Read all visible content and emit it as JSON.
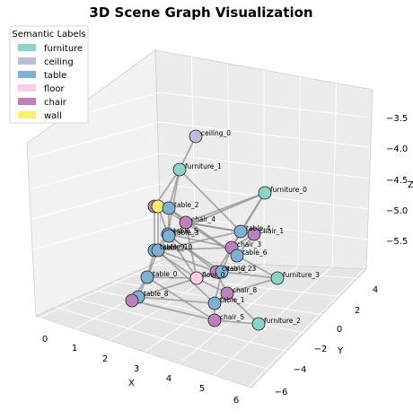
{
  "chart_data": {
    "type": "scatter",
    "title": "3D Scene Graph Visualization",
    "xlabel": "X",
    "ylabel": "Y",
    "zlabel": "Z",
    "x_ticks": [
      "0",
      "1",
      "2",
      "3",
      "4",
      "5",
      "6"
    ],
    "y_ticks": [
      "4",
      "2",
      "0",
      "−2",
      "−4",
      "−6"
    ],
    "z_ticks": [
      "−3.5",
      "−4.0",
      "−4.5",
      "−5.0",
      "−5.5"
    ],
    "grid": true,
    "legend": {
      "title": "Semantic Labels",
      "placement": "top-left",
      "entries": [
        {
          "label": "furniture",
          "color": "#8dd3c7"
        },
        {
          "label": "ceiling",
          "color": "#bebada"
        },
        {
          "label": "table",
          "color": "#80b1d3"
        },
        {
          "label": "floor",
          "color": "#fccde5"
        },
        {
          "label": "chair",
          "color": "#bc80bd"
        },
        {
          "label": "wall",
          "color": "#ffed6f"
        }
      ]
    },
    "colors": {
      "furniture": "#8dd3c7",
      "ceiling": "#bebada",
      "table": "#80b1d3",
      "floor": "#fccde5",
      "chair": "#bc80bd",
      "wall": "#ffed6f"
    },
    "nodes": [
      {
        "id": "ceiling_0",
        "category": "ceiling",
        "label": "ceiling_0"
      },
      {
        "id": "furniture_1",
        "category": "furniture",
        "label": "furniture_1"
      },
      {
        "id": "furniture_0",
        "category": "furniture",
        "label": "furniture_0"
      },
      {
        "id": "chair_0",
        "category": "chair",
        "label": ""
      },
      {
        "id": "wall_0",
        "category": "wall",
        "label": ""
      },
      {
        "id": "table_2",
        "category": "table",
        "label": "table_2"
      },
      {
        "id": "chair_4",
        "category": "chair",
        "label": "chair_4"
      },
      {
        "id": "table_5",
        "category": "table",
        "label": "table_5"
      },
      {
        "id": "table_3",
        "category": "table",
        "label": "table_3"
      },
      {
        "id": "table_4",
        "category": "table",
        "label": "table_4"
      },
      {
        "id": "chair_1",
        "category": "chair",
        "label": "chair_1"
      },
      {
        "id": "chair_3",
        "category": "chair",
        "label": "chair_3"
      },
      {
        "id": "table_6",
        "category": "table",
        "label": "table_6"
      },
      {
        "id": "table_9",
        "category": "table",
        "label": "table_9"
      },
      {
        "id": "table_10",
        "category": "table",
        "label": "table_10"
      },
      {
        "id": "table_0",
        "category": "table",
        "label": "table_0"
      },
      {
        "id": "floor_0",
        "category": "floor",
        "label": "floor_0"
      },
      {
        "id": "chair_2",
        "category": "chair",
        "label": "chair_2"
      },
      {
        "id": "table_23",
        "category": "table",
        "label": "table_23"
      },
      {
        "id": "furniture_3",
        "category": "furniture",
        "label": "furniture_3"
      },
      {
        "id": "chair_8",
        "category": "chair",
        "label": "chair_8"
      },
      {
        "id": "table_8",
        "category": "table",
        "label": "table_8"
      },
      {
        "id": "chair_6",
        "category": "chair",
        "label": ""
      },
      {
        "id": "table_1",
        "category": "table",
        "label": "table_1"
      },
      {
        "id": "chair_5",
        "category": "chair",
        "label": "chair_5"
      },
      {
        "id": "furniture_2",
        "category": "furniture",
        "label": "furniture_2"
      }
    ],
    "edges": [
      [
        "ceiling_0",
        "furniture_1"
      ],
      [
        "furniture_1",
        "table_2"
      ],
      [
        "furniture_1",
        "chair_0"
      ],
      [
        "furniture_1",
        "table_5"
      ],
      [
        "furniture_1",
        "table_4"
      ],
      [
        "furniture_0",
        "chair_4"
      ],
      [
        "furniture_0",
        "table_4"
      ],
      [
        "furniture_0",
        "chair_3"
      ],
      [
        "furniture_0",
        "table_5"
      ],
      [
        "chair_0",
        "table_2"
      ],
      [
        "chair_0",
        "wall_0"
      ],
      [
        "wall_0",
        "chair_4"
      ],
      [
        "wall_0",
        "table_5"
      ],
      [
        "table_2",
        "chair_4"
      ],
      [
        "table_2",
        "table_3"
      ],
      [
        "chair_4",
        "table_4"
      ],
      [
        "chair_4",
        "table_6"
      ],
      [
        "chair_4",
        "floor_0"
      ],
      [
        "table_5",
        "table_3"
      ],
      [
        "table_5",
        "table_9"
      ],
      [
        "table_5",
        "chair_3"
      ],
      [
        "table_3",
        "table_10"
      ],
      [
        "table_3",
        "floor_0"
      ],
      [
        "table_4",
        "chair_1"
      ],
      [
        "table_4",
        "chair_3"
      ],
      [
        "chair_1",
        "table_6"
      ],
      [
        "chair_3",
        "table_6"
      ],
      [
        "chair_3",
        "table_23"
      ],
      [
        "chair_3",
        "chair_2"
      ],
      [
        "table_6",
        "furniture_3"
      ],
      [
        "table_9",
        "table_0"
      ],
      [
        "table_9",
        "floor_0"
      ],
      [
        "table_10",
        "table_0"
      ],
      [
        "table_10",
        "chair_2"
      ],
      [
        "table_0",
        "table_8"
      ],
      [
        "table_0",
        "chair_6"
      ],
      [
        "table_0",
        "floor_0"
      ],
      [
        "floor_0",
        "chair_2"
      ],
      [
        "floor_0",
        "table_23"
      ],
      [
        "chair_2",
        "table_23"
      ],
      [
        "chair_2",
        "chair_8"
      ],
      [
        "table_23",
        "table_1"
      ],
      [
        "table_23",
        "furniture_3"
      ],
      [
        "chair_8",
        "table_1"
      ],
      [
        "chair_8",
        "furniture_2"
      ],
      [
        "table_8",
        "chair_6"
      ],
      [
        "table_8",
        "table_1"
      ],
      [
        "chair_6",
        "chair_5"
      ],
      [
        "table_1",
        "chair_5"
      ],
      [
        "chair_5",
        "furniture_2"
      ],
      [
        "furniture_3",
        "chair_8"
      ],
      [
        "table_10",
        "table_4"
      ],
      [
        "table_9",
        "chair_3"
      ],
      [
        "wall_0",
        "table_10"
      ],
      [
        "chair_0",
        "table_9"
      ],
      [
        "table_5",
        "chair_2"
      ],
      [
        "table_3",
        "table_23"
      ],
      [
        "table_0",
        "chair_5"
      ],
      [
        "table_8",
        "floor_0"
      ],
      [
        "chair_4",
        "chair_1"
      ],
      [
        "table_2",
        "table_6"
      ],
      [
        "table_10",
        "table_1"
      ],
      [
        "floor_0",
        "chair_8"
      ],
      [
        "chair_1",
        "chair_3"
      ]
    ]
  }
}
